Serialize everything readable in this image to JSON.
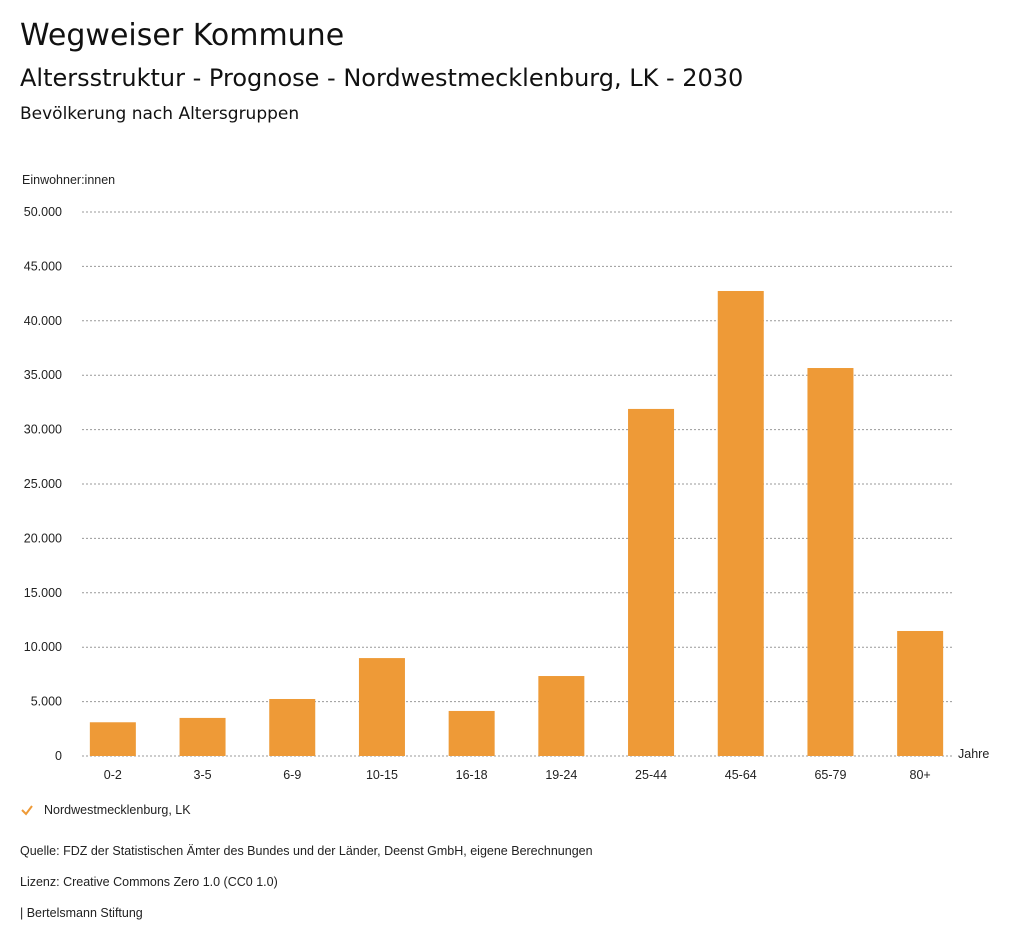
{
  "header": {
    "title": "Wegweiser Kommune",
    "subtitle": "Altersstruktur - Prognose - Nordwestmecklenburg, LK - 2030",
    "section": "Bevölkerung nach Altersgruppen"
  },
  "chart_data": {
    "type": "bar",
    "ylabel": "Einwohner:innen",
    "xlabel": "Jahre",
    "ylim": [
      0,
      50000
    ],
    "yticks": [
      0,
      5000,
      10000,
      15000,
      20000,
      25000,
      30000,
      35000,
      40000,
      45000,
      50000
    ],
    "ytick_labels": [
      "0",
      "5.000",
      "10.000",
      "15.000",
      "20.000",
      "25.000",
      "30.000",
      "35.000",
      "40.000",
      "45.000",
      "50.000"
    ],
    "categories": [
      "0-2",
      "3-5",
      "6-9",
      "10-15",
      "16-18",
      "19-24",
      "25-44",
      "45-64",
      "65-79",
      "80+"
    ],
    "series": [
      {
        "name": "Nordwestmecklenburg, LK",
        "color": "#ee9a37",
        "values": [
          3100,
          3500,
          5240,
          9000,
          4140,
          7350,
          31900,
          42740,
          35660,
          11490
        ]
      }
    ],
    "grid": true,
    "legend": "bottom-left"
  },
  "footer": {
    "source": "Quelle: FDZ der Statistischen Ämter des Bundes und der Länder, Deenst GmbH, eigene Berechnungen",
    "license": "Lizenz: Creative Commons Zero 1.0 (CC0 1.0)",
    "brand": "| Bertelsmann Stiftung"
  }
}
